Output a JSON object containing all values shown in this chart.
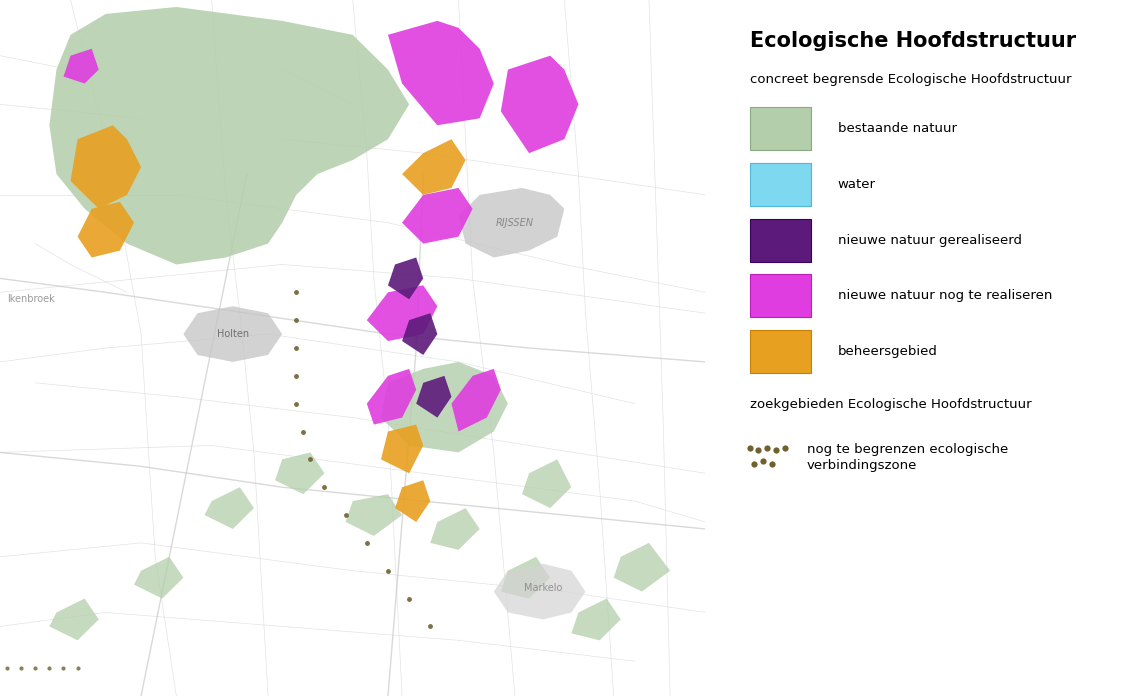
{
  "title": "Ecologische Hoofdstructuur",
  "subtitle": "concreet begrensde Ecologische Hoofdstructuur",
  "legend_items": [
    {
      "label": "bestaande natuur",
      "color": "#b2ceaa",
      "edgecolor": "#88aa80"
    },
    {
      "label": "water",
      "color": "#7dd8f0",
      "edgecolor": "#50b8d8"
    },
    {
      "label": "nieuwe natuur gerealiseerd",
      "color": "#5c1a7a",
      "edgecolor": "#3a0060"
    },
    {
      "label": "nieuwe natuur nog te realiseren",
      "color": "#df3ddf",
      "edgecolor": "#bb20bb"
    },
    {
      "label": "beheersgebied",
      "color": "#e8a020",
      "edgecolor": "#c88000"
    }
  ],
  "section2_label": "zoekgebieden Ecologische Hoofdstructuur",
  "dotted_label_line1": "nog te begrenzen ecologische",
  "dotted_label_line2": "verbindingszone",
  "dot_color": "#706030",
  "background_color": "#ffffff",
  "title_fontsize": 15,
  "subtitle_fontsize": 9.5,
  "legend_fontsize": 9.5,
  "section2_fontsize": 9.5,
  "fig_width": 11.47,
  "fig_height": 6.96,
  "map_white": "#ffffff",
  "map_road_light": "#d8d8d8",
  "map_road_medium": "#c0c0c0",
  "map_urban_gray": "#c4c4c4",
  "map_urban_light": "#d4d4d4",
  "green": "#b2ceaa",
  "purple_dark": "#5c1a7a",
  "purple_bright": "#df3ddf",
  "orange": "#e8a020",
  "cyan": "#7dd8f0"
}
